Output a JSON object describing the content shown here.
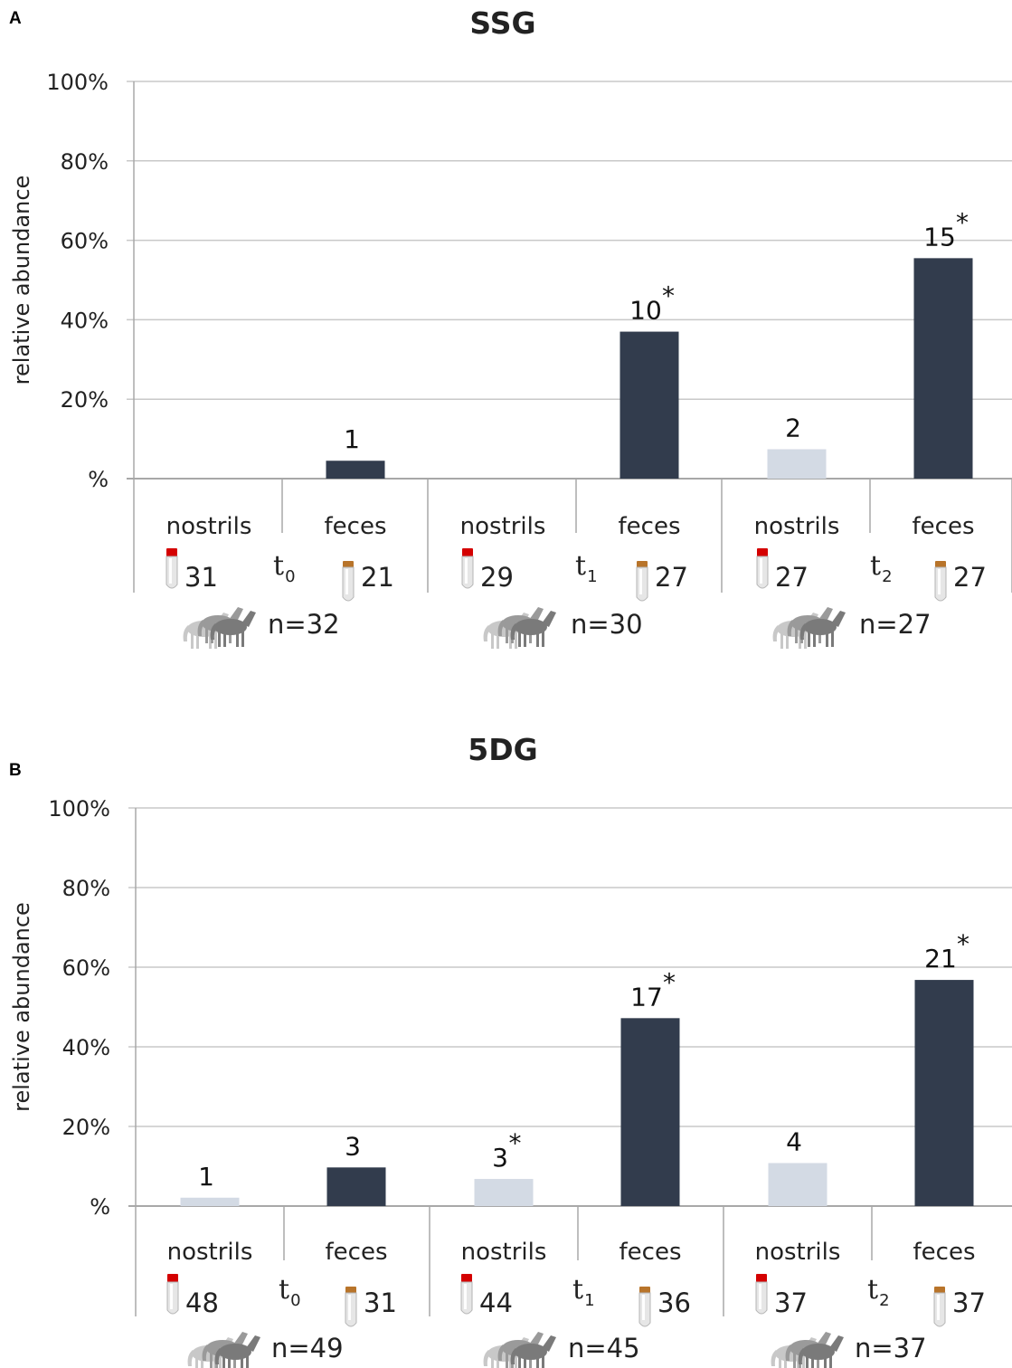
{
  "colors": {
    "feces": "#323c4d",
    "nostrils": "#d3dae4",
    "grid": "#c8c8c8",
    "axis": "#a8a8a8",
    "cap_red": "#d40000",
    "cap_brown": "#b8742a"
  },
  "icons": {
    "tube": "sample-tube-icon",
    "horses": "horse-group-icon"
  },
  "chart_data": [
    {
      "type": "bar",
      "panel_label": "A",
      "title": "SSG",
      "ylabel": "relative abundance",
      "ylim": [
        0,
        100
      ],
      "y_ticks": [
        "%",
        "20%",
        "40%",
        "60%",
        "80%",
        "100%"
      ],
      "categories": [
        "nostrils",
        "feces",
        "nostrils",
        "feces",
        "nostrils",
        "feces"
      ],
      "sample_types": [
        "nostrils",
        "feces",
        "nostrils",
        "feces",
        "nostrils",
        "feces"
      ],
      "values": [
        0,
        4.5,
        0,
        37,
        7.4,
        55.5
      ],
      "data_labels": [
        "",
        "1",
        "",
        "10",
        "2",
        "15"
      ],
      "significant": [
        false,
        false,
        false,
        true,
        false,
        true
      ],
      "sample_counts": [
        "31",
        "21",
        "29",
        "27",
        "27",
        "27"
      ],
      "time_points": [
        {
          "t": "t",
          "sub": "0"
        },
        {
          "t": "t",
          "sub": "1"
        },
        {
          "t": "t",
          "sub": "2"
        }
      ],
      "horse_counts": [
        "n=32",
        "n=30",
        "n=27"
      ]
    },
    {
      "type": "bar",
      "panel_label": "B",
      "title": "5DG",
      "ylabel": "relative abundance",
      "ylim": [
        0,
        100
      ],
      "y_ticks": [
        "%",
        "20%",
        "40%",
        "60%",
        "80%",
        "100%"
      ],
      "categories": [
        "nostrils",
        "feces",
        "nostrils",
        "feces",
        "nostrils",
        "feces"
      ],
      "sample_types": [
        "nostrils",
        "feces",
        "nostrils",
        "feces",
        "nostrils",
        "feces"
      ],
      "values": [
        2.1,
        9.7,
        6.8,
        47.2,
        10.8,
        56.8
      ],
      "data_labels": [
        "1",
        "3",
        "3",
        "17",
        "4",
        "21"
      ],
      "significant": [
        false,
        false,
        true,
        true,
        false,
        true
      ],
      "sample_counts": [
        "48",
        "31",
        "44",
        "36",
        "37",
        "37"
      ],
      "time_points": [
        {
          "t": "t",
          "sub": "0"
        },
        {
          "t": "t",
          "sub": "1"
        },
        {
          "t": "t",
          "sub": "2"
        }
      ],
      "horse_counts": [
        "n=49",
        "n=45",
        "n=37"
      ]
    }
  ]
}
